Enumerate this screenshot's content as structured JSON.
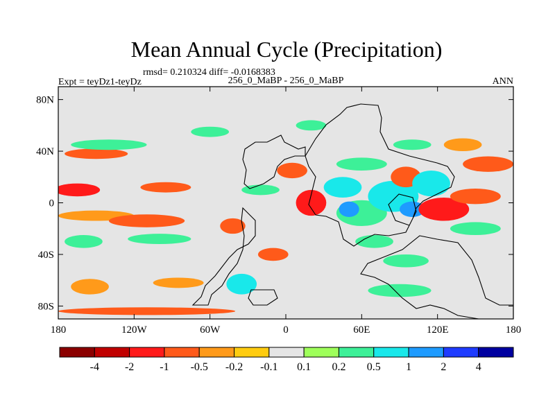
{
  "chart_data": {
    "type": "heatmap",
    "title": "Mean Annual Cycle (Precipitation)",
    "stats_label": "rmsd= 0.210324 diff= -0.0168383",
    "left_label": "Expt = teyDz1-teyDz",
    "center_label": "256_0_MaBP - 256_0_MaBP",
    "right_label": "ANN",
    "x_range": [
      -180,
      180
    ],
    "y_range": [
      -90,
      90
    ],
    "x_ticks": [
      {
        "value": -180,
        "label": "180"
      },
      {
        "value": -120,
        "label": "120W"
      },
      {
        "value": -60,
        "label": "60W"
      },
      {
        "value": 0,
        "label": "0"
      },
      {
        "value": 60,
        "label": "60E"
      },
      {
        "value": 120,
        "label": "120E"
      },
      {
        "value": 180,
        "label": "180"
      }
    ],
    "y_ticks": [
      {
        "value": 80,
        "label": "80N"
      },
      {
        "value": 40,
        "label": "40N"
      },
      {
        "value": 0,
        "label": "0"
      },
      {
        "value": -40,
        "label": "40S"
      },
      {
        "value": -80,
        "label": "80S"
      }
    ],
    "colorbar": {
      "labels": [
        "-4",
        "-2",
        "-1",
        "-0.5",
        "-0.2",
        "-0.1",
        "0.1",
        "0.2",
        "0.5",
        "1",
        "2",
        "4"
      ],
      "colors": [
        "#8b0000",
        "#c00000",
        "#ff1a1a",
        "#ff5a1a",
        "#ff9a1a",
        "#ffcc10",
        "#e5e5e5",
        "#9eff5a",
        "#3df098",
        "#19e8ea",
        "#1e9bff",
        "#1f3cff",
        "#0000a0"
      ]
    },
    "anomaly_patches": [
      {
        "lon": -165,
        "lat": 10,
        "rx": 18,
        "ry": 5,
        "level": "-1"
      },
      {
        "lon": -150,
        "lat": -10,
        "rx": 30,
        "ry": 4,
        "level": "-0.2"
      },
      {
        "lon": -110,
        "lat": -14,
        "rx": 30,
        "ry": 5,
        "level": "-0.5"
      },
      {
        "lon": -95,
        "lat": 12,
        "rx": 20,
        "ry": 4,
        "level": "-0.5"
      },
      {
        "lon": -150,
        "lat": 38,
        "rx": 25,
        "ry": 4,
        "level": "-0.5"
      },
      {
        "lon": -140,
        "lat": 45,
        "rx": 30,
        "ry": 4,
        "level": "0.2"
      },
      {
        "lon": -60,
        "lat": 55,
        "rx": 15,
        "ry": 4,
        "level": "0.2"
      },
      {
        "lon": -160,
        "lat": -30,
        "rx": 15,
        "ry": 5,
        "level": "0.2"
      },
      {
        "lon": -100,
        "lat": -28,
        "rx": 25,
        "ry": 4,
        "level": "0.2"
      },
      {
        "lon": -155,
        "lat": -65,
        "rx": 15,
        "ry": 6,
        "level": "-0.2"
      },
      {
        "lon": -85,
        "lat": -62,
        "rx": 20,
        "ry": 4,
        "level": "-0.2"
      },
      {
        "lon": -110,
        "lat": -84,
        "rx": 70,
        "ry": 3,
        "level": "-0.5"
      },
      {
        "lon": -42,
        "lat": -18,
        "rx": 10,
        "ry": 6,
        "level": "-0.5"
      },
      {
        "lon": -35,
        "lat": -63,
        "rx": 12,
        "ry": 8,
        "level": "0.5"
      },
      {
        "lon": -10,
        "lat": -40,
        "rx": 12,
        "ry": 5,
        "level": "-0.5"
      },
      {
        "lon": 5,
        "lat": 25,
        "rx": 12,
        "ry": 6,
        "level": "-0.5"
      },
      {
        "lon": 20,
        "lat": 0,
        "rx": 12,
        "ry": 10,
        "level": "-1"
      },
      {
        "lon": 45,
        "lat": 12,
        "rx": 15,
        "ry": 8,
        "level": "0.5"
      },
      {
        "lon": 60,
        "lat": -8,
        "rx": 20,
        "ry": 10,
        "level": "0.2"
      },
      {
        "lon": 50,
        "lat": -5,
        "rx": 8,
        "ry": 6,
        "level": "1"
      },
      {
        "lon": 85,
        "lat": 5,
        "rx": 20,
        "ry": 12,
        "level": "0.5"
      },
      {
        "lon": 95,
        "lat": 20,
        "rx": 12,
        "ry": 8,
        "level": "-0.5"
      },
      {
        "lon": 100,
        "lat": -5,
        "rx": 10,
        "ry": 6,
        "level": "1"
      },
      {
        "lon": 120,
        "lat": -8,
        "rx": 8,
        "ry": 5,
        "level": "-4"
      },
      {
        "lon": 125,
        "lat": -5,
        "rx": 20,
        "ry": 9,
        "level": "-1"
      },
      {
        "lon": 115,
        "lat": 15,
        "rx": 15,
        "ry": 10,
        "level": "0.5"
      },
      {
        "lon": 150,
        "lat": 5,
        "rx": 20,
        "ry": 6,
        "level": "-0.5"
      },
      {
        "lon": 160,
        "lat": 30,
        "rx": 20,
        "ry": 6,
        "level": "-0.5"
      },
      {
        "lon": 60,
        "lat": 30,
        "rx": 20,
        "ry": 5,
        "level": "0.2"
      },
      {
        "lon": 70,
        "lat": -30,
        "rx": 15,
        "ry": 5,
        "level": "0.2"
      },
      {
        "lon": 95,
        "lat": -45,
        "rx": 18,
        "ry": 5,
        "level": "0.2"
      },
      {
        "lon": 150,
        "lat": -20,
        "rx": 20,
        "ry": 5,
        "level": "0.2"
      },
      {
        "lon": 140,
        "lat": 45,
        "rx": 15,
        "ry": 5,
        "level": "-0.2"
      },
      {
        "lon": 100,
        "lat": 45,
        "rx": 15,
        "ry": 4,
        "level": "0.2"
      },
      {
        "lon": 20,
        "lat": 60,
        "rx": 12,
        "ry": 4,
        "level": "0.2"
      },
      {
        "lon": -20,
        "lat": 10,
        "rx": 15,
        "ry": 4,
        "level": "0.2"
      },
      {
        "lon": 90,
        "lat": -68,
        "rx": 25,
        "ry": 5,
        "level": "0.2"
      }
    ]
  }
}
